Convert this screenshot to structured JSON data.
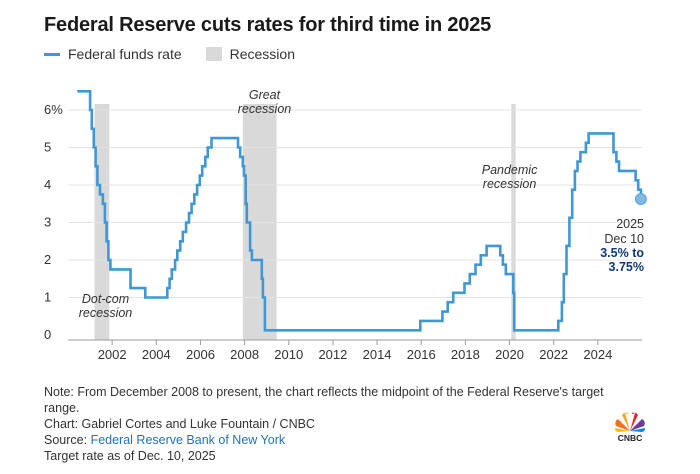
{
  "title": "Federal Reserve cuts rates for third time in 2025",
  "legend": {
    "line_label": "Federal funds rate",
    "box_label": "Recession"
  },
  "colors": {
    "line": "#3f97d3",
    "recession": "#d9d9d9",
    "grid": "#e3e3e3",
    "callout": "#0f3a78"
  },
  "chart_data": {
    "type": "line",
    "title": "Federal Reserve cuts rates for third time in 2025",
    "xlabel": "",
    "ylabel": "",
    "xlim": [
      2000,
      2026
    ],
    "ylim": [
      0,
      6.5
    ],
    "grid": true,
    "legend_position": "top-left",
    "y_ticks": [
      {
        "value": 0,
        "label": "0"
      },
      {
        "value": 1,
        "label": "1"
      },
      {
        "value": 2,
        "label": "2"
      },
      {
        "value": 3,
        "label": "3"
      },
      {
        "value": 4,
        "label": "4"
      },
      {
        "value": 5,
        "label": "5"
      },
      {
        "value": 6,
        "label": "6%"
      }
    ],
    "x_ticks": [
      {
        "value": 2002,
        "label": "2002"
      },
      {
        "value": 2004,
        "label": "2004"
      },
      {
        "value": 2006,
        "label": "2006"
      },
      {
        "value": 2008,
        "label": "2008"
      },
      {
        "value": 2010,
        "label": "2010"
      },
      {
        "value": 2012,
        "label": "2012"
      },
      {
        "value": 2014,
        "label": "2014"
      },
      {
        "value": 2016,
        "label": "2016"
      },
      {
        "value": 2018,
        "label": "2018"
      },
      {
        "value": 2020,
        "label": "2020"
      },
      {
        "value": 2022,
        "label": "2022"
      },
      {
        "value": 2024,
        "label": "2024"
      }
    ],
    "recessions": [
      {
        "start": 2001.2,
        "end": 2001.87,
        "label_lines": [
          "Dot-com",
          "recession"
        ],
        "label_x": 2001.7,
        "label_y": 0.85
      },
      {
        "start": 2007.92,
        "end": 2009.45,
        "label_lines": [
          "Great",
          "recession"
        ],
        "label_x": 2008.9,
        "label_y": 6.3
      },
      {
        "start": 2020.08,
        "end": 2020.28,
        "label_lines": [
          "Pandemic",
          "recession"
        ],
        "label_x": 2020.0,
        "label_y": 4.3
      }
    ],
    "series": [
      {
        "name": "Federal funds rate",
        "step": true,
        "points": [
          [
            2000.42,
            6.5
          ],
          [
            2000.92,
            6.5
          ],
          [
            2001.0,
            6.0
          ],
          [
            2001.08,
            5.5
          ],
          [
            2001.17,
            5.0
          ],
          [
            2001.25,
            4.5
          ],
          [
            2001.33,
            4.0
          ],
          [
            2001.45,
            3.75
          ],
          [
            2001.58,
            3.5
          ],
          [
            2001.67,
            3.0
          ],
          [
            2001.75,
            2.5
          ],
          [
            2001.83,
            2.0
          ],
          [
            2001.92,
            1.75
          ],
          [
            2002.83,
            1.25
          ],
          [
            2003.5,
            1.0
          ],
          [
            2004.5,
            1.25
          ],
          [
            2004.6,
            1.5
          ],
          [
            2004.7,
            1.75
          ],
          [
            2004.85,
            2.0
          ],
          [
            2004.95,
            2.25
          ],
          [
            2005.08,
            2.5
          ],
          [
            2005.2,
            2.75
          ],
          [
            2005.35,
            3.0
          ],
          [
            2005.48,
            3.25
          ],
          [
            2005.6,
            3.5
          ],
          [
            2005.72,
            3.75
          ],
          [
            2005.85,
            4.0
          ],
          [
            2005.97,
            4.25
          ],
          [
            2006.08,
            4.5
          ],
          [
            2006.22,
            4.75
          ],
          [
            2006.33,
            5.0
          ],
          [
            2006.5,
            5.25
          ],
          [
            2007.7,
            5.0
          ],
          [
            2007.8,
            4.75
          ],
          [
            2007.92,
            4.5
          ],
          [
            2007.97,
            4.25
          ],
          [
            2008.05,
            3.5
          ],
          [
            2008.1,
            3.0
          ],
          [
            2008.25,
            2.25
          ],
          [
            2008.33,
            2.0
          ],
          [
            2008.78,
            1.5
          ],
          [
            2008.83,
            1.0
          ],
          [
            2008.92,
            0.125
          ],
          [
            2015.96,
            0.375
          ],
          [
            2016.96,
            0.625
          ],
          [
            2017.2,
            0.875
          ],
          [
            2017.45,
            1.125
          ],
          [
            2017.96,
            1.375
          ],
          [
            2018.2,
            1.625
          ],
          [
            2018.46,
            1.875
          ],
          [
            2018.7,
            2.125
          ],
          [
            2018.96,
            2.375
          ],
          [
            2019.58,
            2.125
          ],
          [
            2019.7,
            1.875
          ],
          [
            2019.83,
            1.625
          ],
          [
            2020.17,
            1.125
          ],
          [
            2020.21,
            0.125
          ],
          [
            2022.21,
            0.375
          ],
          [
            2022.37,
            0.875
          ],
          [
            2022.46,
            1.625
          ],
          [
            2022.58,
            2.375
          ],
          [
            2022.71,
            3.125
          ],
          [
            2022.84,
            3.875
          ],
          [
            2022.96,
            4.375
          ],
          [
            2023.08,
            4.625
          ],
          [
            2023.21,
            4.875
          ],
          [
            2023.46,
            5.125
          ],
          [
            2023.58,
            5.375
          ],
          [
            2024.71,
            4.875
          ],
          [
            2024.84,
            4.625
          ],
          [
            2024.96,
            4.375
          ],
          [
            2025.71,
            4.125
          ],
          [
            2025.83,
            3.875
          ],
          [
            2025.95,
            3.625
          ]
        ]
      }
    ],
    "end_marker": {
      "x": 2025.95,
      "y": 3.625
    },
    "annotation": {
      "line1": "2025",
      "line2": "Dec 10",
      "line3": "3.5% to",
      "line4": "3.75%"
    }
  },
  "notes": {
    "note": "Note: From December 2008 to present, the chart reflects the midpoint of the Federal Reserve's target range.",
    "credit": "Chart: Gabriel Cortes and Luke Fountain / CNBC",
    "source_prefix": "Source: ",
    "source_link": "Federal Reserve Bank of New York",
    "asof": "Target rate as of Dec. 10, 2025"
  },
  "logo": {
    "icon": "cnbc-peacock-logo",
    "text": "CNBC"
  }
}
